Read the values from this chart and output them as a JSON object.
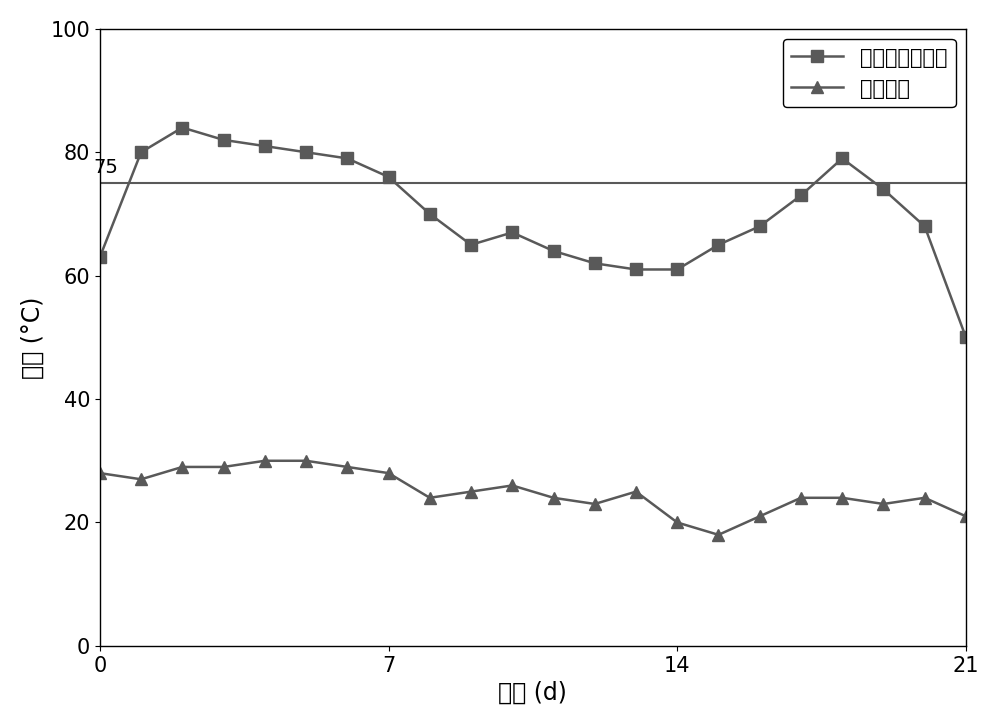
{
  "fermentation_x": [
    0,
    1,
    2,
    3,
    4,
    5,
    6,
    7,
    8,
    9,
    10,
    11,
    12,
    13,
    14,
    15,
    16,
    17,
    18,
    19,
    20,
    21
  ],
  "fermentation_y": [
    63,
    80,
    84,
    82,
    81,
    80,
    79,
    76,
    70,
    65,
    67,
    64,
    62,
    61,
    61,
    65,
    68,
    73,
    79,
    74,
    68,
    50
  ],
  "ambient_x": [
    0,
    1,
    2,
    3,
    4,
    5,
    6,
    7,
    8,
    9,
    10,
    11,
    12,
    13,
    14,
    15,
    16,
    17,
    18,
    19,
    20,
    21
  ],
  "ambient_y": [
    28,
    27,
    29,
    29,
    30,
    30,
    29,
    28,
    24,
    25,
    26,
    24,
    23,
    25,
    20,
    18,
    21,
    24,
    24,
    23,
    24,
    21
  ],
  "reference_line_y": 75,
  "reference_label": "75",
  "xlim": [
    0,
    21
  ],
  "ylim": [
    0,
    100
  ],
  "xticks": [
    0,
    7,
    14,
    21
  ],
  "yticks": [
    0,
    20,
    40,
    60,
    80,
    100
  ],
  "xlabel": "时间 (d)",
  "ylabel": "温度 (°C)",
  "legend_fermentation": "定向腐殖化发酵",
  "legend_ambient": "环境温度",
  "line_color": "#595959",
  "marker_square": "s",
  "marker_triangle": "^",
  "markersize": 8,
  "linewidth": 1.8,
  "ref_linewidth": 1.5,
  "ref_color": "#595959",
  "font_size_label": 17,
  "font_size_tick": 15,
  "font_size_legend": 15,
  "font_size_ref": 14,
  "background_color": "#ffffff"
}
